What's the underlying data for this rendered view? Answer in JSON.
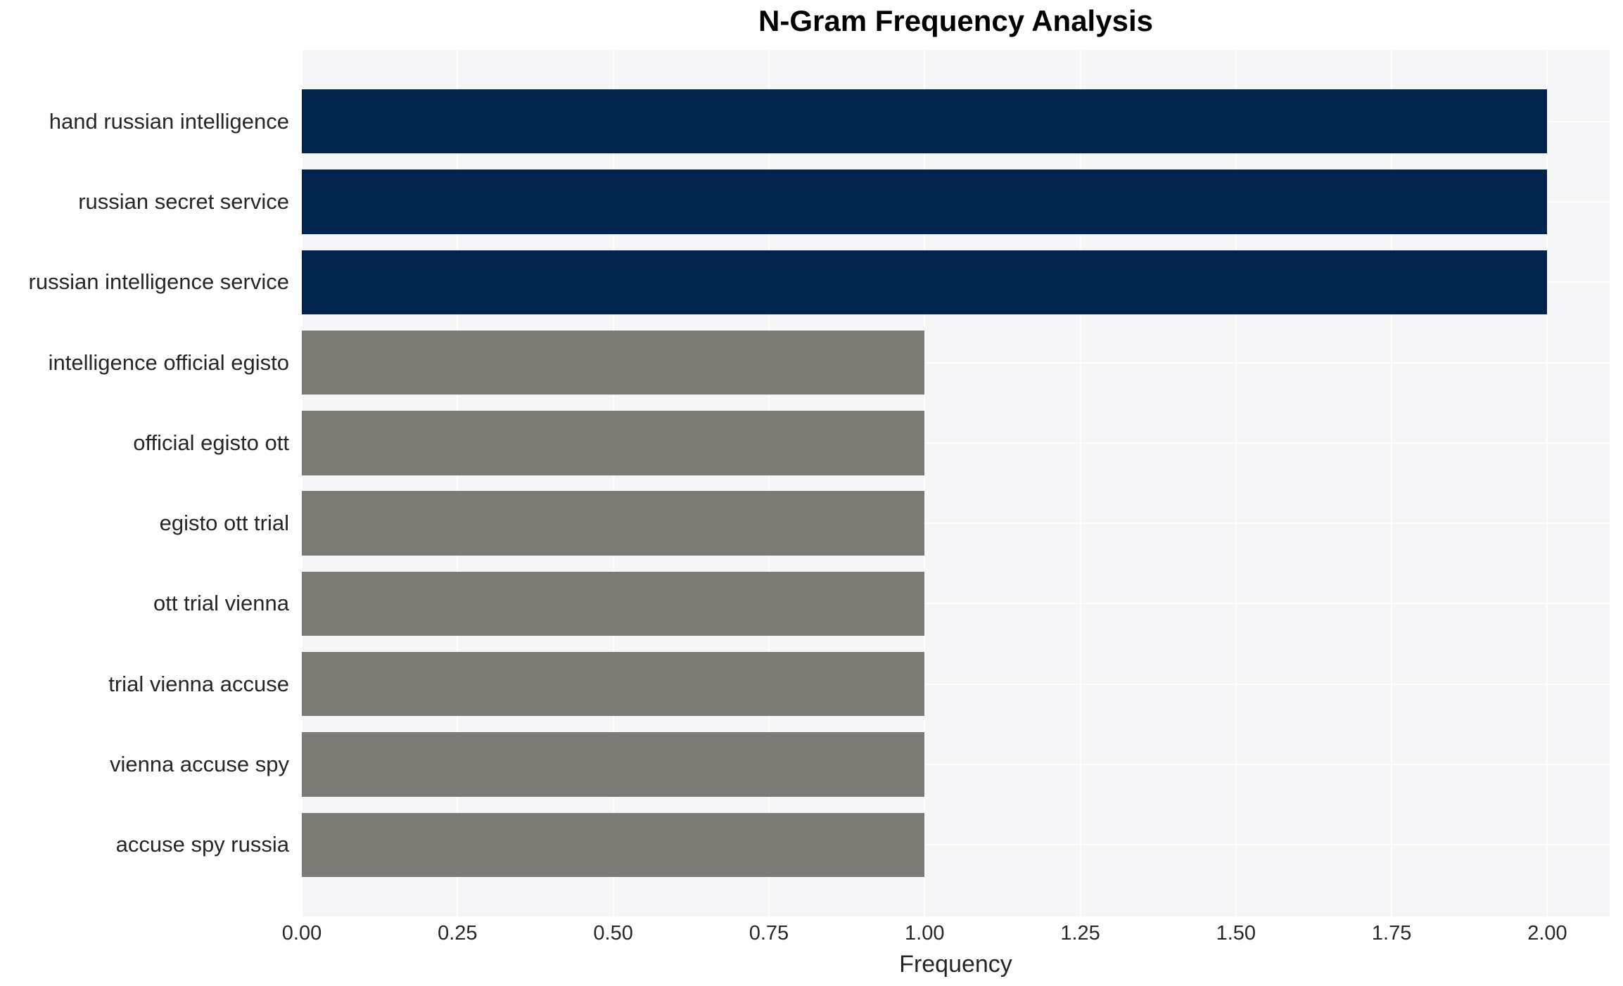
{
  "chart_data": {
    "type": "bar",
    "orientation": "horizontal",
    "title": "N-Gram Frequency Analysis",
    "xlabel": "Frequency",
    "ylabel": "",
    "categories": [
      "hand russian intelligence",
      "russian secret service",
      "russian intelligence service",
      "intelligence official egisto",
      "official egisto ott",
      "egisto ott trial",
      "ott trial vienna",
      "trial vienna accuse",
      "vienna accuse spy",
      "accuse spy russia"
    ],
    "values": [
      2,
      2,
      2,
      1,
      1,
      1,
      1,
      1,
      1,
      1
    ],
    "bar_colors": [
      "#02234E",
      "#02234E",
      "#02234E",
      "#7B7A75",
      "#7B7A75",
      "#7B7A75",
      "#7B7A75",
      "#7B7A75",
      "#7B7A75",
      "#7B7A75"
    ],
    "x_ticks": [
      "0.00",
      "0.25",
      "0.50",
      "0.75",
      "1.00",
      "1.25",
      "1.50",
      "1.75",
      "2.00"
    ],
    "x_tick_values": [
      0,
      0.25,
      0.5,
      0.75,
      1.0,
      1.25,
      1.5,
      1.75,
      2.0
    ],
    "xlim": [
      0,
      2.1
    ],
    "legend": null,
    "grid": "on",
    "grid_color": "#FFFFFF",
    "plot_background": "#F6F6F8",
    "page_background": "#FFFFFF",
    "navy_color": "#02234E",
    "gray_color": "#7B7A75",
    "text_color": "#262626",
    "title_color": "#000000"
  }
}
